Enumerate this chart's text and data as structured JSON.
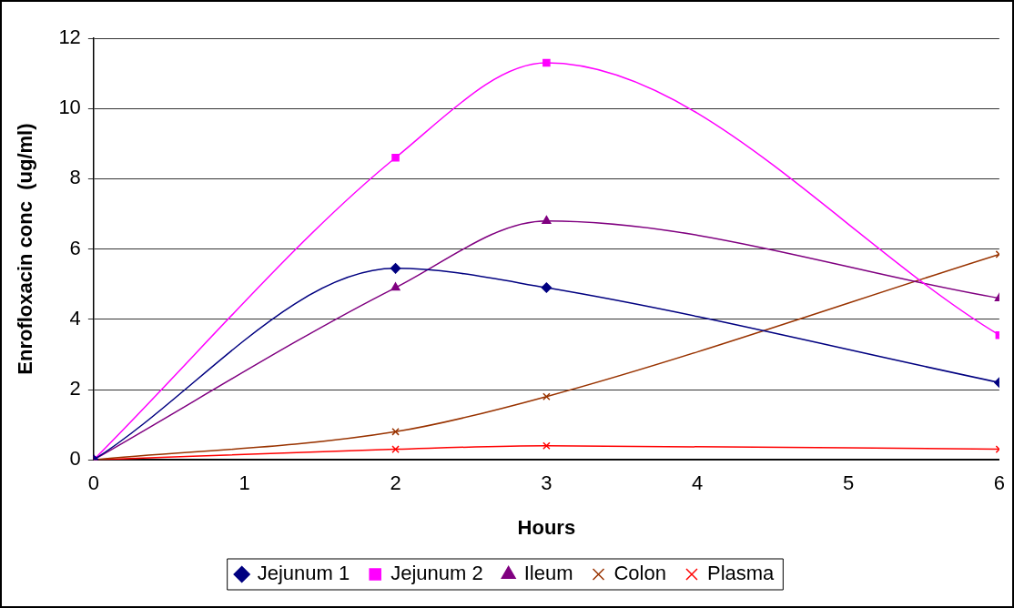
{
  "chart_data": {
    "type": "line",
    "xlabel": "Hours",
    "ylabel": "Enrofloxacin conc  (ug/ml)",
    "x": [
      0,
      2,
      3,
      6
    ],
    "xlim": [
      0,
      6
    ],
    "xticks": [
      0,
      1,
      2,
      3,
      4,
      5,
      6
    ],
    "ylim": [
      0,
      12
    ],
    "yticks": [
      0,
      2,
      4,
      6,
      8,
      10,
      12
    ],
    "grid": "y",
    "legend": "bottom",
    "series": [
      {
        "name": "Jejunum 1",
        "color": "#000080",
        "marker": "diamond",
        "values": [
          0,
          5.45,
          4.9,
          2.2
        ]
      },
      {
        "name": "Jejunum 2",
        "color": "#ff00ff",
        "marker": "square",
        "values": [
          0,
          8.6,
          11.3,
          3.55
        ]
      },
      {
        "name": "Ileum",
        "color": "#800080",
        "marker": "triangle",
        "values": [
          0,
          4.9,
          6.8,
          4.6
        ]
      },
      {
        "name": "Colon",
        "color": "#993300",
        "marker": "cross",
        "values": [
          0,
          0.8,
          1.8,
          5.85
        ]
      },
      {
        "name": "Plasma",
        "color": "#ff0000",
        "marker": "cross",
        "values": [
          0,
          0.3,
          0.4,
          0.3
        ]
      }
    ]
  }
}
